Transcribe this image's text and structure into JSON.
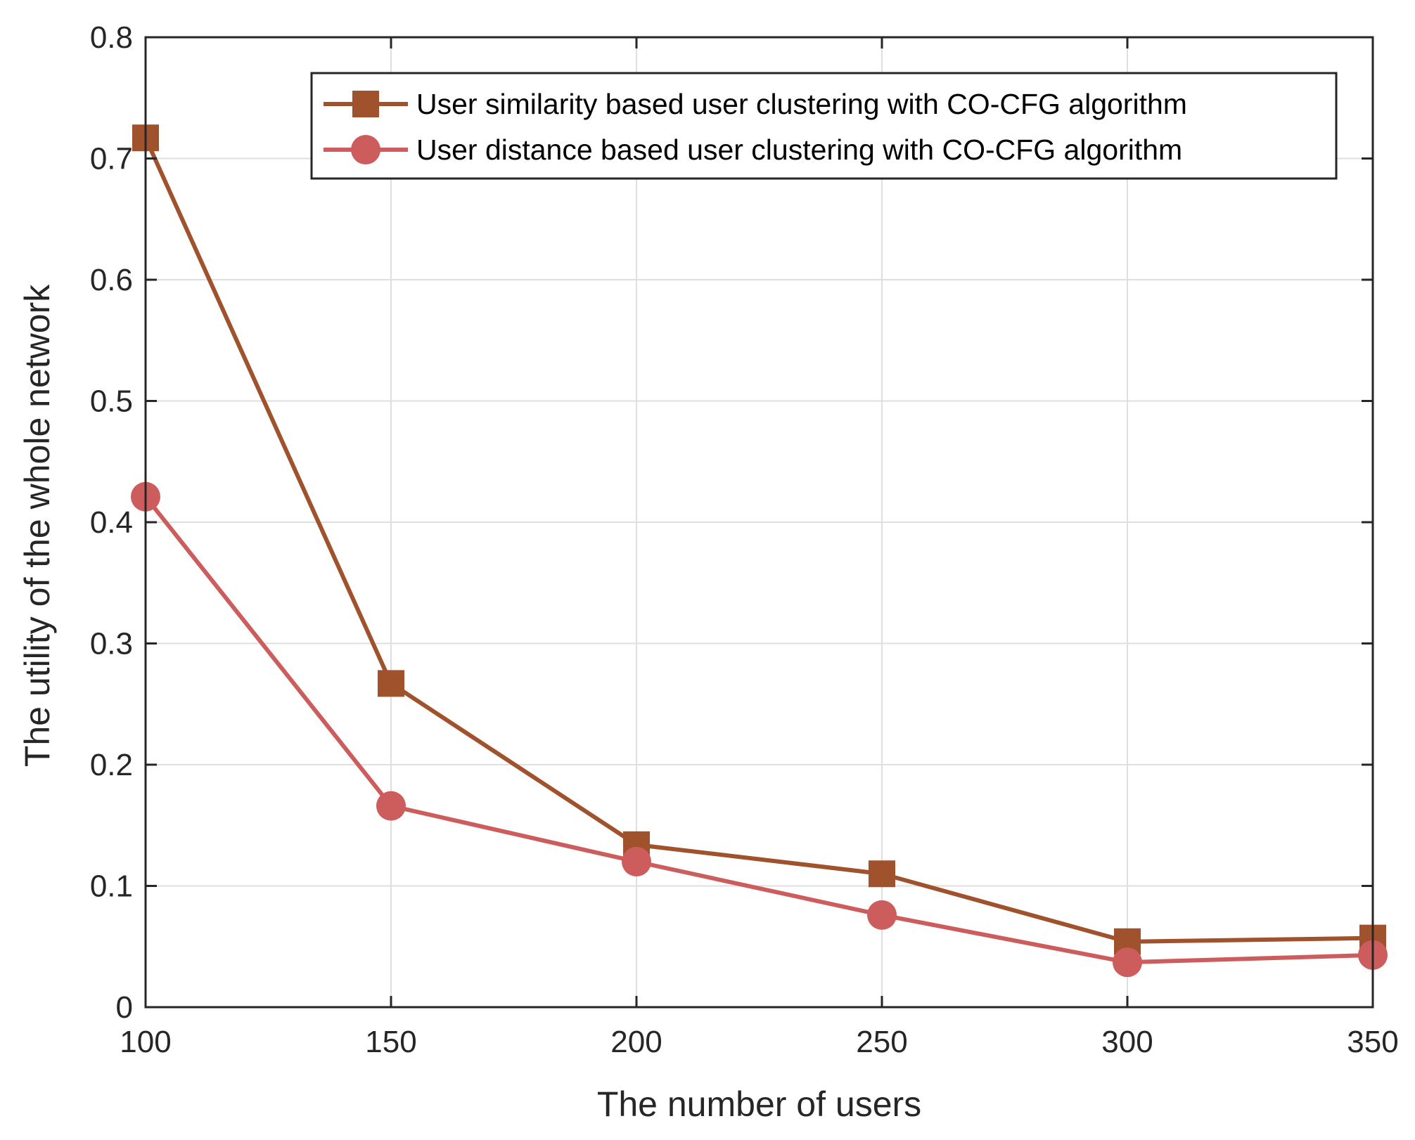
{
  "chart_data": {
    "type": "line",
    "title": "",
    "xlabel": "The number of users",
    "ylabel": "The utility of the whole network",
    "x": [
      100,
      150,
      200,
      250,
      300,
      350
    ],
    "xlim": [
      100,
      350
    ],
    "ylim": [
      0,
      0.8
    ],
    "xticks": [
      "100",
      "150",
      "200",
      "250",
      "300",
      "350"
    ],
    "yticks": [
      "0",
      "0.1",
      "0.2",
      "0.3",
      "0.4",
      "0.5",
      "0.6",
      "0.7",
      "0.8"
    ],
    "grid": true,
    "legend_position": "top-right",
    "series": [
      {
        "name": "User similarity based user clustering with CO-CFG algorithm",
        "marker": "square",
        "color": "#A0522D",
        "values": [
          0.717,
          0.267,
          0.134,
          0.11,
          0.054,
          0.057
        ]
      },
      {
        "name": "User distance based user clustering with CO-CFG algorithm",
        "marker": "circle",
        "color": "#CD5C5C",
        "values": [
          0.421,
          0.166,
          0.12,
          0.076,
          0.037,
          0.043
        ]
      }
    ]
  }
}
